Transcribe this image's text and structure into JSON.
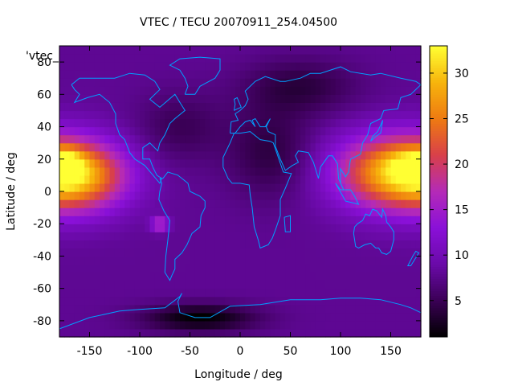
{
  "chart_data": {
    "type": "heatmap",
    "title": "VTEC / TECU 20070911_254.04500",
    "xlabel": "Longitude / deg",
    "ylabel": "Latitude / deg",
    "corner_label": "'vtec_",
    "xlim": [
      -180,
      180
    ],
    "ylim": [
      -90,
      90
    ],
    "x_ticks": [
      -150,
      -100,
      -50,
      0,
      50,
      100,
      150
    ],
    "y_ticks": [
      -80,
      -60,
      -40,
      -20,
      0,
      20,
      40,
      60,
      80
    ],
    "colorbar": {
      "range": [
        1,
        33
      ],
      "ticks": [
        5,
        10,
        15,
        20,
        25,
        30
      ],
      "palette": [
        "#000000",
        "#3a0055",
        "#6a0aa8",
        "#8a10d8",
        "#b42ab8",
        "#d8404a",
        "#ee7a12",
        "#f7b40c",
        "#ffff33"
      ]
    },
    "grid": {
      "lon_step": 5,
      "lat_step": 5,
      "features": [
        {
          "kind": "band",
          "lon": 150,
          "lat": 12,
          "lon_sigma": 40,
          "lat_sigma": 16,
          "value": 18
        },
        {
          "kind": "band",
          "lon": -160,
          "lat": 10,
          "lon_sigma": 35,
          "lat_sigma": 15,
          "value": 17
        },
        {
          "kind": "spot",
          "lon": -170,
          "lat": 18,
          "lon_sigma": 10,
          "lat_sigma": 6,
          "value": 5
        },
        {
          "kind": "spot",
          "lon": 170,
          "lat": 18,
          "lon_sigma": 15,
          "lat_sigma": 6,
          "value": 4
        },
        {
          "kind": "spot",
          "lon": -80,
          "lat": -20,
          "lon_sigma": 6,
          "lat_sigma": 3,
          "value": 10
        },
        {
          "kind": "low",
          "lon": -40,
          "lat": -78,
          "lon_sigma": 40,
          "lat_sigma": 6,
          "value": -7
        },
        {
          "kind": "low",
          "lon": 30,
          "lat": 25,
          "lon_sigma": 30,
          "lat_sigma": 20,
          "value": -4
        },
        {
          "kind": "low",
          "lon": 60,
          "lat": 65,
          "lon_sigma": 40,
          "lat_sigma": 12,
          "value": -4
        },
        {
          "kind": "low",
          "lon": -60,
          "lat": 40,
          "lon_sigma": 30,
          "lat_sigma": 15,
          "value": -3
        }
      ],
      "base": 8
    }
  },
  "colors": {
    "coast": "#00a0ff",
    "frame": "#000000"
  }
}
